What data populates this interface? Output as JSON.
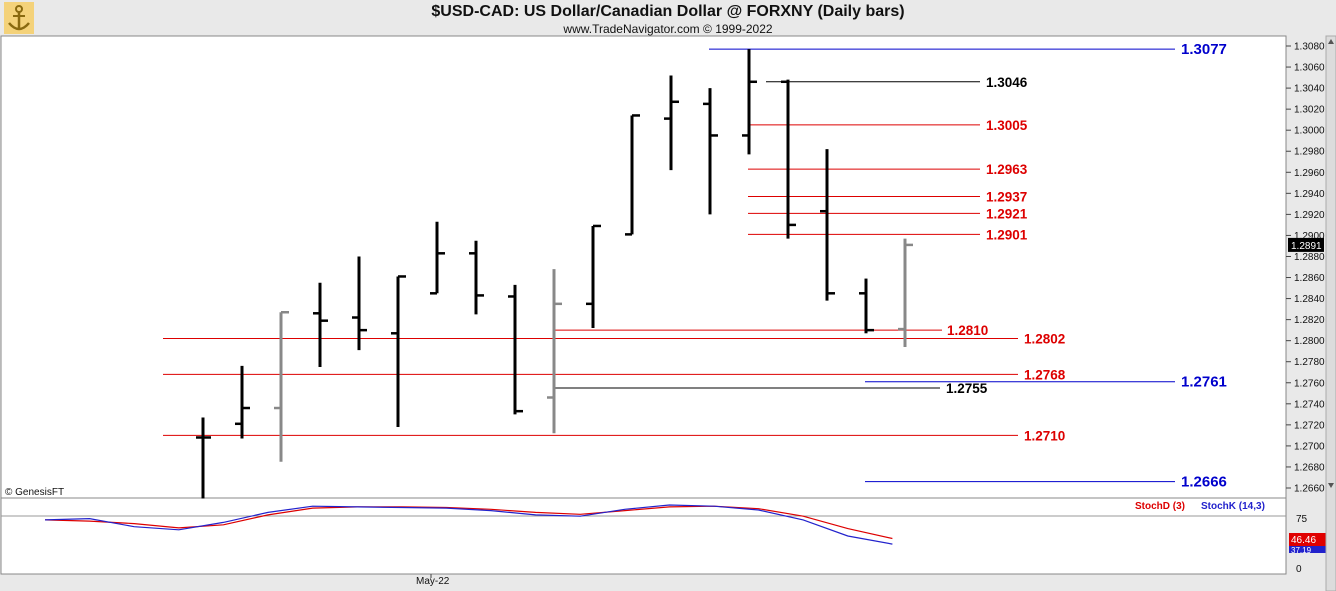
{
  "header": {
    "title": "$USD-CAD:  US Dollar/Canadian Dollar @ FORXNY  (Daily bars)",
    "subtitle": "www.TradeNavigator.com © 1999-2022"
  },
  "watermark": "© GenesisFT",
  "colors": {
    "up": "#000000",
    "down": "#888888",
    "support": "#dd0000",
    "pivot": "#000000",
    "extreme": "#0000cc",
    "stoch_d": "#dd0000",
    "stoch_k": "#2222cc"
  },
  "chart_data": [
    {
      "type": "ohlc",
      "title": "$USD-CAD:  US Dollar/Canadian Dollar @ FORXNY  (Daily bars)",
      "x_label": "May-22",
      "ylim": [
        1.265,
        1.3085
      ],
      "y_ticks": [
        "1.2660",
        "1.2680",
        "1.2700",
        "1.2720",
        "1.2740",
        "1.2760",
        "1.2780",
        "1.2800",
        "1.2820",
        "1.2840",
        "1.2860",
        "1.2880",
        "1.2900",
        "1.2920",
        "1.2940",
        "1.2960",
        "1.2980",
        "1.3000",
        "1.3020",
        "1.3040",
        "1.3060",
        "1.3080"
      ],
      "last_price": "1.2891",
      "bars": [
        {
          "o": 1.2708,
          "h": 1.2727,
          "l": 1.265,
          "c": 1.2708,
          "color": "#000000"
        },
        {
          "o": 1.2721,
          "h": 1.2776,
          "l": 1.2707,
          "c": 1.2736,
          "color": "#000000"
        },
        {
          "o": 1.2736,
          "h": 1.2827,
          "l": 1.2685,
          "c": 1.2827,
          "color": "#888888"
        },
        {
          "o": 1.2826,
          "h": 1.2855,
          "l": 1.2775,
          "c": 1.2819,
          "color": "#000000"
        },
        {
          "o": 1.2822,
          "h": 1.288,
          "l": 1.2791,
          "c": 1.281,
          "color": "#000000"
        },
        {
          "o": 1.2807,
          "h": 1.2861,
          "l": 1.2718,
          "c": 1.2861,
          "color": "#000000"
        },
        {
          "o": 1.2845,
          "h": 1.2913,
          "l": 1.2845,
          "c": 1.2883,
          "color": "#000000"
        },
        {
          "o": 1.2883,
          "h": 1.2895,
          "l": 1.2825,
          "c": 1.2843,
          "color": "#000000"
        },
        {
          "o": 1.2842,
          "h": 1.2853,
          "l": 1.273,
          "c": 1.2733,
          "color": "#000000"
        },
        {
          "o": 1.2746,
          "h": 1.2868,
          "l": 1.2712,
          "c": 1.2835,
          "color": "#888888"
        },
        {
          "o": 1.2835,
          "h": 1.2909,
          "l": 1.2812,
          "c": 1.2909,
          "color": "#000000"
        },
        {
          "o": 1.2901,
          "h": 1.3014,
          "l": 1.2901,
          "c": 1.3014,
          "color": "#000000"
        },
        {
          "o": 1.3011,
          "h": 1.3052,
          "l": 1.2962,
          "c": 1.3027,
          "color": "#000000"
        },
        {
          "o": 1.3025,
          "h": 1.304,
          "l": 1.292,
          "c": 1.2995,
          "color": "#000000"
        },
        {
          "o": 1.2995,
          "h": 1.3077,
          "l": 1.2977,
          "c": 1.3046,
          "color": "#000000"
        },
        {
          "o": 1.3046,
          "h": 1.3048,
          "l": 1.2897,
          "c": 1.291,
          "color": "#000000"
        },
        {
          "o": 1.2923,
          "h": 1.2982,
          "l": 1.2838,
          "c": 1.2845,
          "color": "#000000"
        },
        {
          "o": 1.2845,
          "h": 1.2859,
          "l": 1.2807,
          "c": 1.281,
          "color": "#000000"
        },
        {
          "o": 1.2811,
          "h": 1.2897,
          "l": 1.2794,
          "c": 1.2891,
          "color": "#888888"
        }
      ],
      "levels": [
        {
          "label": "1.3077",
          "value": 1.3077,
          "kind": "extreme"
        },
        {
          "label": "1.3046",
          "value": 1.3046,
          "kind": "pivot"
        },
        {
          "label": "1.3005",
          "value": 1.3005,
          "kind": "support"
        },
        {
          "label": "1.2963",
          "value": 1.2963,
          "kind": "support"
        },
        {
          "label": "1.2937",
          "value": 1.2937,
          "kind": "support"
        },
        {
          "label": "1.2921",
          "value": 1.2921,
          "kind": "support"
        },
        {
          "label": "1.2901",
          "value": 1.2901,
          "kind": "support"
        },
        {
          "label": "1.2810",
          "value": 1.281,
          "kind": "support"
        },
        {
          "label": "1.2802",
          "value": 1.2802,
          "kind": "support"
        },
        {
          "label": "1.2768",
          "value": 1.2768,
          "kind": "support"
        },
        {
          "label": "1.2761",
          "value": 1.2761,
          "kind": "extreme"
        },
        {
          "label": "1.2755",
          "value": 1.2755,
          "kind": "pivot"
        },
        {
          "label": "1.2710",
          "value": 1.271,
          "kind": "support"
        },
        {
          "label": "1.2666",
          "value": 1.2666,
          "kind": "extreme"
        }
      ]
    },
    {
      "type": "line",
      "title": "Stochastic",
      "ylim": [
        0,
        100
      ],
      "y_ticks": [
        "75",
        "0"
      ],
      "series": [
        {
          "name": "StochD (3)",
          "last": "46.46",
          "values": [
            [
              0,
              76
            ],
            [
              2,
              74
            ],
            [
              4,
              70
            ],
            [
              6,
              63
            ],
            [
              8,
              68
            ],
            [
              10,
              84
            ],
            [
              12,
              95
            ],
            [
              14,
              97
            ],
            [
              16,
              97
            ],
            [
              18,
              96
            ],
            [
              20,
              93
            ],
            [
              22,
              88
            ],
            [
              24,
              85
            ],
            [
              26,
              91
            ],
            [
              28,
              97
            ],
            [
              30,
              98
            ],
            [
              32,
              94
            ],
            [
              34,
              82
            ],
            [
              36,
              62
            ],
            [
              38,
              46
            ]
          ]
        },
        {
          "name": "StochK (14,3)",
          "last": "37.19",
          "values": [
            [
              0,
              76
            ],
            [
              2,
              78
            ],
            [
              4,
              65
            ],
            [
              6,
              60
            ],
            [
              8,
              72
            ],
            [
              10,
              88
            ],
            [
              12,
              98
            ],
            [
              14,
              97
            ],
            [
              16,
              96
            ],
            [
              18,
              95
            ],
            [
              20,
              91
            ],
            [
              22,
              84
            ],
            [
              24,
              82
            ],
            [
              26,
              93
            ],
            [
              28,
              100
            ],
            [
              30,
              98
            ],
            [
              32,
              92
            ],
            [
              34,
              76
            ],
            [
              36,
              50
            ],
            [
              38,
              37
            ]
          ]
        }
      ]
    }
  ]
}
